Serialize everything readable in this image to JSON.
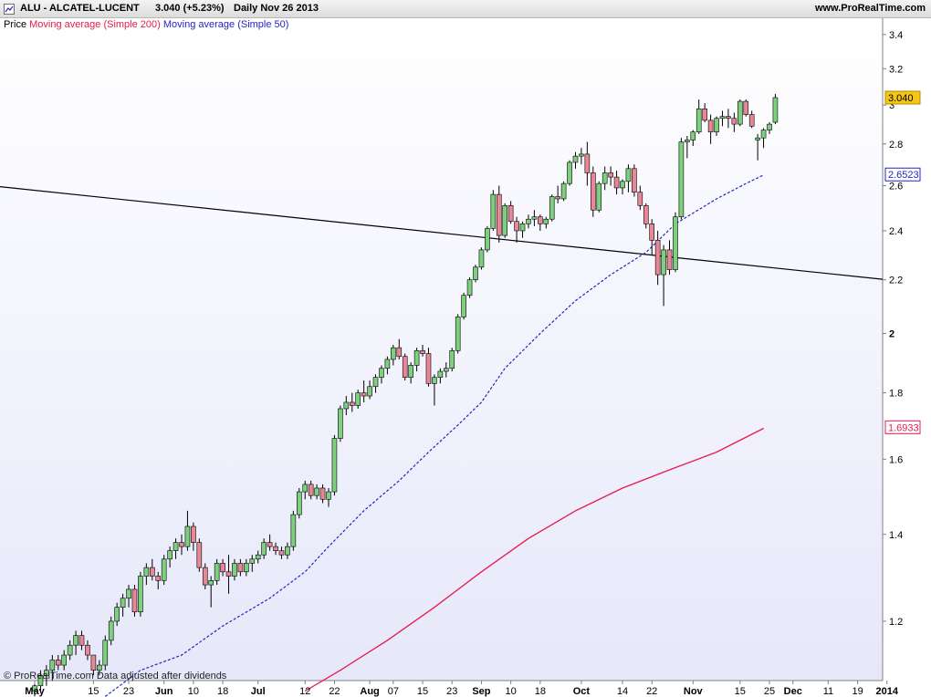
{
  "header": {
    "symbol": "ALU - ALCATEL-LUCENT",
    "price": "3.040 (+5.23%)",
    "period": "Daily  Nov 26 2013",
    "site": "www.ProRealTime.com"
  },
  "legend": {
    "price": "Price",
    "ma200": "Moving average (Simple 200)",
    "ma50": "Moving average (Simple 50)"
  },
  "footer": {
    "copyright": "© ProRealTime.com  Data adjusted after dividends"
  },
  "colors": {
    "up": "#7ed07e",
    "down": "#e88896",
    "ma200": "#e8194c",
    "ma50": "#2323c8",
    "trendline": "#000000",
    "background_top": "#ffffff",
    "background_bottom": "#e6e8fa"
  },
  "chart_data": {
    "type": "candlestick",
    "title": "ALU - ALCATEL-LUCENT",
    "y_scale": "log",
    "ylim": [
      1.08,
      3.5
    ],
    "y_ticks": [
      1.2,
      1.4,
      1.6,
      1.8,
      2,
      2.2,
      2.4,
      2.6,
      2.8,
      3,
      3.2,
      3.4
    ],
    "y_tick_labels": [
      "1.2",
      "1.4",
      "1.6",
      "1.8",
      "2",
      "2.2",
      "2.4",
      "2.6",
      "2.8",
      "3",
      "3.2",
      "3.4"
    ],
    "x_range": [
      0,
      145
    ],
    "x_ticks": [
      {
        "x": 0,
        "label": "May",
        "bold": true
      },
      {
        "x": 10,
        "label": "15",
        "bold": false
      },
      {
        "x": 16,
        "label": "23",
        "bold": false
      },
      {
        "x": 22,
        "label": "Jun",
        "bold": true
      },
      {
        "x": 27,
        "label": "10",
        "bold": false
      },
      {
        "x": 32,
        "label": "18",
        "bold": false
      },
      {
        "x": 38,
        "label": "Jul",
        "bold": true
      },
      {
        "x": 46,
        "label": "12",
        "bold": false
      },
      {
        "x": 51,
        "label": "22",
        "bold": false
      },
      {
        "x": 57,
        "label": "Aug",
        "bold": true
      },
      {
        "x": 61,
        "label": "07",
        "bold": false
      },
      {
        "x": 66,
        "label": "15",
        "bold": false
      },
      {
        "x": 71,
        "label": "23",
        "bold": false
      },
      {
        "x": 76,
        "label": "Sep",
        "bold": true
      },
      {
        "x": 81,
        "label": "10",
        "bold": false
      },
      {
        "x": 86,
        "label": "18",
        "bold": false
      },
      {
        "x": 93,
        "label": "Oct",
        "bold": true
      },
      {
        "x": 100,
        "label": "14",
        "bold": false
      },
      {
        "x": 105,
        "label": "22",
        "bold": false
      },
      {
        "x": 112,
        "label": "Nov",
        "bold": true
      },
      {
        "x": 120,
        "label": "15",
        "bold": false
      },
      {
        "x": 125,
        "label": "25",
        "bold": false
      },
      {
        "x": 129,
        "label": "Dec",
        "bold": true
      },
      {
        "x": 135,
        "label": "11",
        "bold": false
      },
      {
        "x": 140,
        "label": "19",
        "bold": false
      },
      {
        "x": 145,
        "label": "2014",
        "bold": true
      }
    ],
    "candles_ohlc": [
      [
        1.06,
        1.08,
        1.05,
        1.07
      ],
      [
        1.07,
        1.1,
        1.06,
        1.09
      ],
      [
        1.09,
        1.11,
        1.07,
        1.1
      ],
      [
        1.1,
        1.13,
        1.08,
        1.12
      ],
      [
        1.12,
        1.13,
        1.1,
        1.11
      ],
      [
        1.11,
        1.14,
        1.1,
        1.13
      ],
      [
        1.13,
        1.16,
        1.12,
        1.15
      ],
      [
        1.15,
        1.18,
        1.13,
        1.17
      ],
      [
        1.17,
        1.18,
        1.14,
        1.15
      ],
      [
        1.15,
        1.16,
        1.12,
        1.13
      ],
      [
        1.13,
        1.13,
        1.09,
        1.1
      ],
      [
        1.1,
        1.12,
        1.09,
        1.11
      ],
      [
        1.11,
        1.17,
        1.1,
        1.16
      ],
      [
        1.16,
        1.21,
        1.15,
        1.2
      ],
      [
        1.2,
        1.24,
        1.19,
        1.23
      ],
      [
        1.23,
        1.26,
        1.21,
        1.25
      ],
      [
        1.25,
        1.28,
        1.23,
        1.27
      ],
      [
        1.27,
        1.28,
        1.21,
        1.22
      ],
      [
        1.22,
        1.31,
        1.21,
        1.3
      ],
      [
        1.3,
        1.33,
        1.28,
        1.32
      ],
      [
        1.32,
        1.34,
        1.29,
        1.3
      ],
      [
        1.3,
        1.31,
        1.27,
        1.29
      ],
      [
        1.29,
        1.35,
        1.28,
        1.34
      ],
      [
        1.34,
        1.37,
        1.32,
        1.36
      ],
      [
        1.36,
        1.39,
        1.34,
        1.38
      ],
      [
        1.38,
        1.4,
        1.35,
        1.37
      ],
      [
        1.37,
        1.46,
        1.36,
        1.42
      ],
      [
        1.42,
        1.43,
        1.36,
        1.38
      ],
      [
        1.38,
        1.39,
        1.31,
        1.32
      ],
      [
        1.32,
        1.33,
        1.27,
        1.28
      ],
      [
        1.28,
        1.3,
        1.23,
        1.29
      ],
      [
        1.29,
        1.34,
        1.28,
        1.33
      ],
      [
        1.33,
        1.34,
        1.3,
        1.31
      ],
      [
        1.31,
        1.35,
        1.26,
        1.3
      ],
      [
        1.3,
        1.34,
        1.29,
        1.33
      ],
      [
        1.33,
        1.34,
        1.3,
        1.31
      ],
      [
        1.31,
        1.34,
        1.3,
        1.33
      ],
      [
        1.33,
        1.35,
        1.31,
        1.34
      ],
      [
        1.34,
        1.36,
        1.33,
        1.35
      ],
      [
        1.35,
        1.39,
        1.34,
        1.38
      ],
      [
        1.38,
        1.4,
        1.36,
        1.37
      ],
      [
        1.37,
        1.38,
        1.35,
        1.36
      ],
      [
        1.36,
        1.37,
        1.34,
        1.35
      ],
      [
        1.35,
        1.38,
        1.34,
        1.37
      ],
      [
        1.37,
        1.46,
        1.36,
        1.45
      ],
      [
        1.45,
        1.52,
        1.44,
        1.51
      ],
      [
        1.51,
        1.54,
        1.49,
        1.53
      ],
      [
        1.53,
        1.54,
        1.49,
        1.5
      ],
      [
        1.5,
        1.53,
        1.49,
        1.52
      ],
      [
        1.52,
        1.53,
        1.48,
        1.49
      ],
      [
        1.49,
        1.52,
        1.47,
        1.51
      ],
      [
        1.51,
        1.67,
        1.5,
        1.66
      ],
      [
        1.66,
        1.76,
        1.65,
        1.75
      ],
      [
        1.75,
        1.79,
        1.73,
        1.77
      ],
      [
        1.77,
        1.8,
        1.74,
        1.76
      ],
      [
        1.76,
        1.81,
        1.75,
        1.8
      ],
      [
        1.8,
        1.84,
        1.77,
        1.79
      ],
      [
        1.79,
        1.84,
        1.78,
        1.82
      ],
      [
        1.82,
        1.86,
        1.8,
        1.85
      ],
      [
        1.85,
        1.89,
        1.83,
        1.88
      ],
      [
        1.88,
        1.92,
        1.86,
        1.91
      ],
      [
        1.91,
        1.96,
        1.89,
        1.95
      ],
      [
        1.95,
        1.98,
        1.91,
        1.92
      ],
      [
        1.92,
        1.93,
        1.84,
        1.85
      ],
      [
        1.85,
        1.9,
        1.83,
        1.89
      ],
      [
        1.89,
        1.95,
        1.87,
        1.94
      ],
      [
        1.94,
        1.96,
        1.92,
        1.93
      ],
      [
        1.93,
        1.95,
        1.82,
        1.83
      ],
      [
        1.83,
        1.86,
        1.76,
        1.85
      ],
      [
        1.85,
        1.88,
        1.83,
        1.87
      ],
      [
        1.87,
        1.9,
        1.85,
        1.88
      ],
      [
        1.88,
        1.95,
        1.87,
        1.94
      ],
      [
        1.94,
        2.07,
        1.93,
        2.06
      ],
      [
        2.06,
        2.15,
        2.05,
        2.14
      ],
      [
        2.14,
        2.21,
        2.13,
        2.2
      ],
      [
        2.2,
        2.26,
        2.19,
        2.25
      ],
      [
        2.25,
        2.33,
        2.24,
        2.32
      ],
      [
        2.32,
        2.42,
        2.31,
        2.41
      ],
      [
        2.41,
        2.58,
        2.4,
        2.56
      ],
      [
        2.56,
        2.6,
        2.35,
        2.38
      ],
      [
        2.38,
        2.52,
        2.37,
        2.51
      ],
      [
        2.51,
        2.53,
        2.43,
        2.44
      ],
      [
        2.44,
        2.46,
        2.35,
        2.4
      ],
      [
        2.4,
        2.44,
        2.37,
        2.43
      ],
      [
        2.43,
        2.47,
        2.41,
        2.45
      ],
      [
        2.45,
        2.49,
        2.42,
        2.46
      ],
      [
        2.46,
        2.47,
        2.4,
        2.43
      ],
      [
        2.43,
        2.46,
        2.41,
        2.45
      ],
      [
        2.45,
        2.56,
        2.44,
        2.55
      ],
      [
        2.55,
        2.6,
        2.52,
        2.54
      ],
      [
        2.54,
        2.62,
        2.53,
        2.61
      ],
      [
        2.61,
        2.72,
        2.6,
        2.71
      ],
      [
        2.71,
        2.76,
        2.68,
        2.74
      ],
      [
        2.74,
        2.78,
        2.7,
        2.75
      ],
      [
        2.75,
        2.81,
        2.6,
        2.66
      ],
      [
        2.66,
        2.69,
        2.46,
        2.49
      ],
      [
        2.49,
        2.62,
        2.48,
        2.61
      ],
      [
        2.61,
        2.69,
        2.58,
        2.66
      ],
      [
        2.66,
        2.69,
        2.6,
        2.64
      ],
      [
        2.64,
        2.67,
        2.56,
        2.59
      ],
      [
        2.59,
        2.63,
        2.56,
        2.62
      ],
      [
        2.62,
        2.7,
        2.57,
        2.68
      ],
      [
        2.68,
        2.7,
        2.55,
        2.57
      ],
      [
        2.57,
        2.6,
        2.49,
        2.51
      ],
      [
        2.51,
        2.52,
        2.41,
        2.43
      ],
      [
        2.43,
        2.45,
        2.3,
        2.36
      ],
      [
        2.36,
        2.4,
        2.18,
        2.22
      ],
      [
        2.22,
        2.34,
        2.1,
        2.32
      ],
      [
        2.32,
        2.36,
        2.22,
        2.24
      ],
      [
        2.24,
        2.48,
        2.23,
        2.46
      ],
      [
        2.46,
        2.83,
        2.45,
        2.81
      ],
      [
        2.81,
        2.84,
        2.73,
        2.82
      ],
      [
        2.82,
        2.87,
        2.79,
        2.86
      ],
      [
        2.86,
        3.03,
        2.85,
        2.98
      ],
      [
        2.98,
        3.01,
        2.91,
        2.92
      ],
      [
        2.92,
        2.95,
        2.8,
        2.86
      ],
      [
        2.86,
        2.94,
        2.84,
        2.93
      ],
      [
        2.93,
        2.97,
        2.89,
        2.94
      ],
      [
        2.94,
        2.98,
        2.88,
        2.93
      ],
      [
        2.93,
        2.96,
        2.86,
        2.9
      ],
      [
        2.9,
        3.03,
        2.89,
        3.02
      ],
      [
        3.02,
        3.03,
        2.94,
        2.95
      ],
      [
        2.95,
        2.97,
        2.88,
        2.89
      ],
      [
        2.82,
        2.85,
        2.72,
        2.83
      ],
      [
        2.83,
        2.88,
        2.78,
        2.87
      ],
      [
        2.87,
        2.91,
        2.85,
        2.9
      ],
      [
        2.91,
        3.06,
        2.9,
        3.04
      ]
    ],
    "ma50": [
      [
        12,
        1.05
      ],
      [
        18,
        1.1
      ],
      [
        25,
        1.13
      ],
      [
        32,
        1.19
      ],
      [
        40,
        1.25
      ],
      [
        46,
        1.31
      ],
      [
        50,
        1.37
      ],
      [
        56,
        1.46
      ],
      [
        62,
        1.54
      ],
      [
        67,
        1.62
      ],
      [
        72,
        1.7
      ],
      [
        76,
        1.77
      ],
      [
        80,
        1.88
      ],
      [
        86,
        2.0
      ],
      [
        92,
        2.12
      ],
      [
        98,
        2.22
      ],
      [
        104,
        2.31
      ],
      [
        109,
        2.43
      ],
      [
        116,
        2.54
      ],
      [
        121,
        2.61
      ],
      [
        124,
        2.65
      ]
    ],
    "ma200": [
      [
        46,
        1.06
      ],
      [
        52,
        1.1
      ],
      [
        60,
        1.16
      ],
      [
        68,
        1.23
      ],
      [
        76,
        1.31
      ],
      [
        84,
        1.39
      ],
      [
        92,
        1.46
      ],
      [
        100,
        1.52
      ],
      [
        108,
        1.57
      ],
      [
        116,
        1.62
      ],
      [
        124,
        1.69
      ]
    ],
    "trendline": [
      [
        0,
        2.58
      ],
      [
        145,
        2.2
      ]
    ],
    "last_values": {
      "price": "3.040",
      "ma50": "2.6523",
      "ma200": "1.6933"
    }
  }
}
